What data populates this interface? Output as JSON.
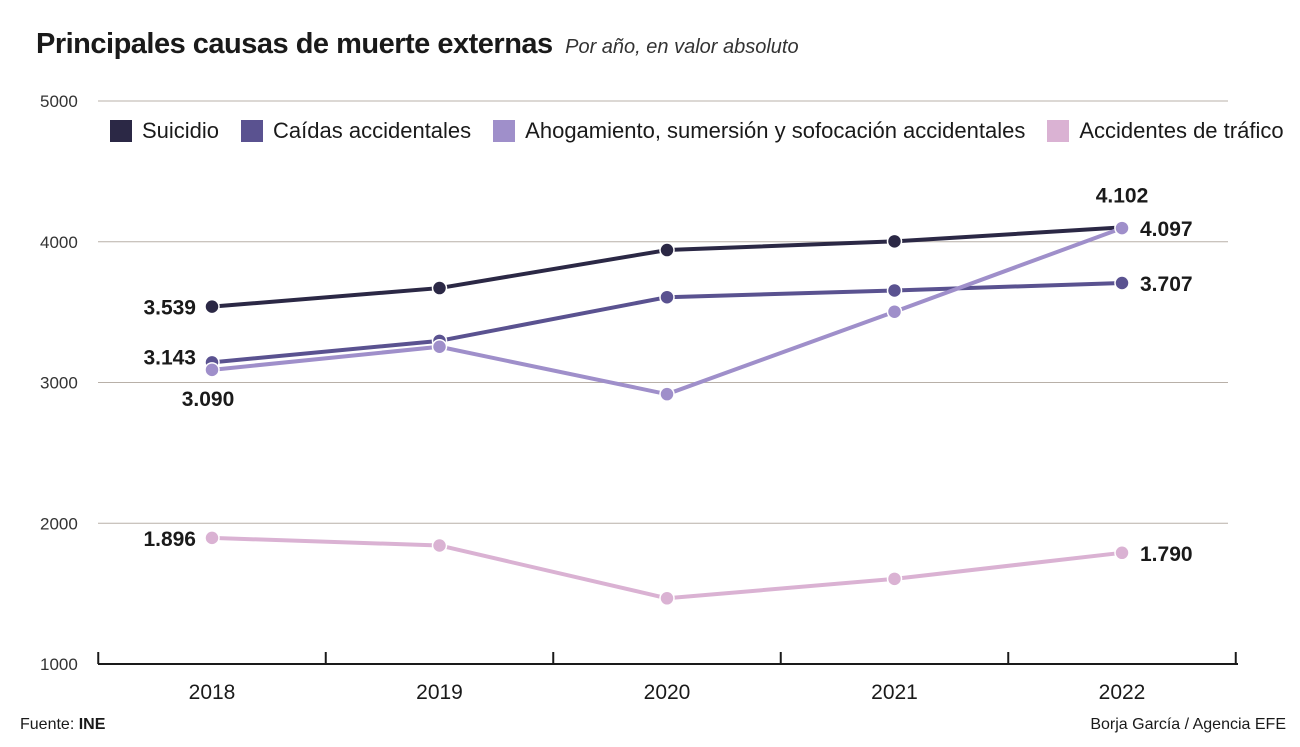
{
  "title": "Principales causas de muerte externas",
  "subtitle": "Por año, en valor absoluto",
  "footer": {
    "source_label": "Fuente:",
    "source_value": "INE",
    "credit": "Borja García / Agencia EFE"
  },
  "chart_data": {
    "type": "line",
    "title": "Principales causas de muerte externas",
    "subtitle": "Por año, en valor absoluto",
    "xlabel": "",
    "ylabel": "",
    "x": [
      "2018",
      "2019",
      "2020",
      "2021",
      "2022"
    ],
    "ylim": [
      1000,
      5000
    ],
    "yticks": [
      "1000",
      "2000",
      "3000",
      "4000",
      "5000"
    ],
    "grid": true,
    "legend_position": "top",
    "series": [
      {
        "name": "Suicidio",
        "color": "#2b2845",
        "values": [
          3539,
          3671,
          3941,
          4003,
          4102
        ],
        "labels": [
          {
            "index": 0,
            "text": "3.539"
          },
          {
            "index": 4,
            "text": "4.102"
          }
        ]
      },
      {
        "name": "Caídas accidentales",
        "color": "#5a5290",
        "values": [
          3143,
          3296,
          3606,
          3654,
          3707
        ],
        "labels": [
          {
            "index": 0,
            "text": "3.143"
          },
          {
            "index": 4,
            "text": "3.707"
          }
        ]
      },
      {
        "name": "Ahogamiento, sumersión y sofocación accidentales",
        "color": "#9f8fca",
        "values": [
          3090,
          3254,
          2917,
          3503,
          4097
        ],
        "labels": [
          {
            "index": 0,
            "text": "3.090"
          },
          {
            "index": 4,
            "text": "4.097"
          }
        ]
      },
      {
        "name": "Accidentes de tráfico",
        "color": "#dab2d3",
        "values": [
          1896,
          1842,
          1467,
          1605,
          1790
        ],
        "labels": [
          {
            "index": 0,
            "text": "1.896"
          },
          {
            "index": 4,
            "text": "1.790"
          }
        ]
      }
    ]
  }
}
